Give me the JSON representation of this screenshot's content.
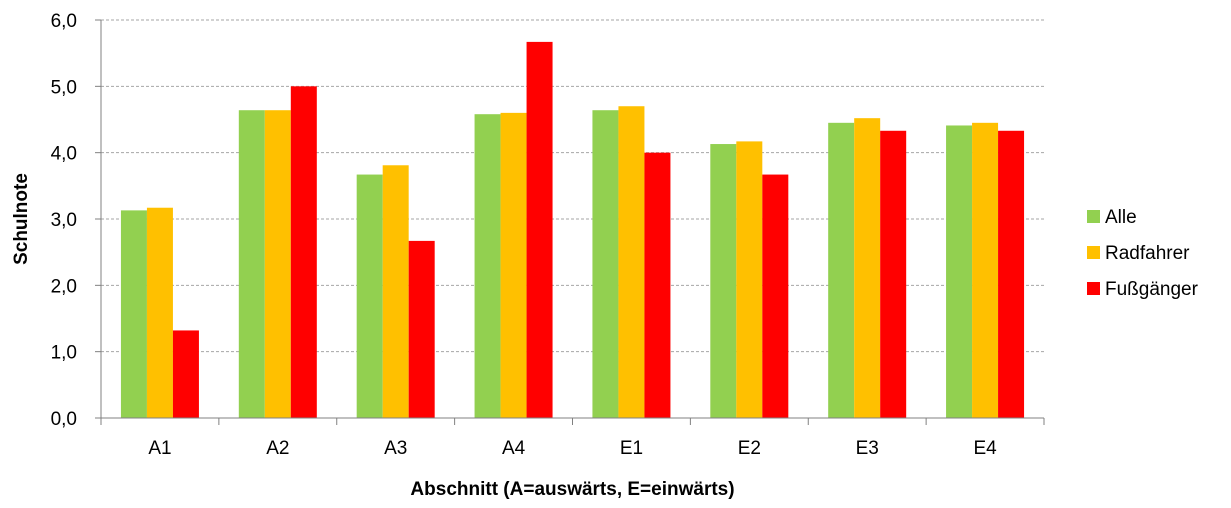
{
  "chart_data": {
    "type": "bar",
    "title": "",
    "xlabel": "Abschnitt (A=auswärts, E=einwärts)",
    "ylabel": "Schulnote",
    "ylim": [
      0,
      6
    ],
    "yticks": [
      "0,0",
      "1,0",
      "2,0",
      "3,0",
      "4,0",
      "5,0",
      "6,0"
    ],
    "grid": "horizontal dashed",
    "legend_position": "right",
    "categories": [
      "A1",
      "A2",
      "A3",
      "A4",
      "E1",
      "E2",
      "E3",
      "E4"
    ],
    "series": [
      {
        "name": "Alle",
        "color": "#92d050",
        "values": [
          3.13,
          4.64,
          3.67,
          4.58,
          4.64,
          4.13,
          4.45,
          4.41
        ]
      },
      {
        "name": "Radfahrer",
        "color": "#ffc000",
        "values": [
          3.17,
          4.64,
          3.81,
          4.6,
          4.7,
          4.17,
          4.52,
          4.45
        ]
      },
      {
        "name": "Fußgänger",
        "color": "#ff0000",
        "values": [
          1.32,
          5.0,
          2.67,
          5.67,
          4.0,
          3.67,
          4.33,
          4.33
        ]
      }
    ]
  }
}
